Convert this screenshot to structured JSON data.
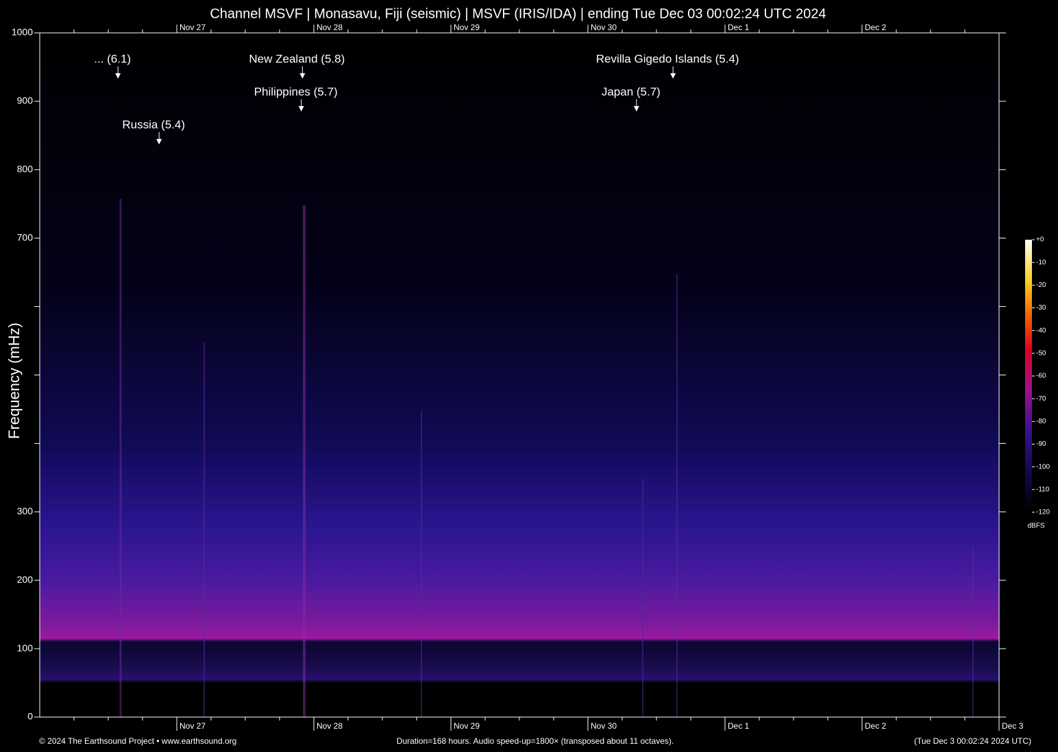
{
  "chart_data": {
    "type": "spectrogram",
    "title": "Channel MSVF | Monasavu, Fiji (seismic) | MSVF (IRIS/IDA) | ending Tue Dec 03 00:02:24 UTC 2024",
    "y_label": "Frequency (mHz)",
    "xlim": [
      0,
      168
    ],
    "xticks": [
      {
        "value": 24,
        "label": "Nov 27"
      },
      {
        "value": 48,
        "label": "Nov 28"
      },
      {
        "value": 72,
        "label": "Nov 29"
      },
      {
        "value": 96,
        "label": "Nov 30"
      },
      {
        "value": 120,
        "label": "Dec  1"
      },
      {
        "value": 144,
        "label": "Dec  2"
      },
      {
        "value": 168,
        "label": "Dec  3"
      }
    ],
    "minor_xticks": [
      6,
      12,
      18,
      30,
      36,
      42,
      54,
      60,
      66,
      78,
      84,
      90,
      102,
      108,
      114,
      126,
      132,
      138,
      150,
      156,
      162
    ],
    "ylim": [
      0,
      1000
    ],
    "yticks": [
      0,
      100,
      200,
      300,
      700,
      800,
      900,
      1000
    ],
    "minor_yticks": [
      400,
      500,
      600
    ],
    "annotations": [
      {
        "text": "... (6.1)",
        "x": 13.7,
        "y": 935
      },
      {
        "text": "Russia (5.4)",
        "x": 20.9,
        "y": 839
      },
      {
        "text": "New Zealand (5.8)",
        "x": 46.0,
        "y": 935
      },
      {
        "text": "Philippines (5.7)",
        "x": 45.8,
        "y": 887
      },
      {
        "text": "Revilla Gigedo Islands (5.4)",
        "x": 110.9,
        "y": 935
      },
      {
        "text": "Japan (5.7)",
        "x": 104.5,
        "y": 887
      }
    ],
    "colorbar": {
      "label": "dBFS",
      "lim": [
        -120,
        0
      ],
      "ticks": [
        {
          "value": 0,
          "label": "+0"
        },
        -10,
        -20,
        -30,
        -40,
        -50,
        -60,
        -70,
        -80,
        -90,
        -100,
        -110,
        -120
      ]
    },
    "footer_left": "© 2024 The Earthsound Project • www.earthsound.org",
    "footer_center": "Duration=168 hours. Audio speed-up=1800× (transposed about 11 octaves).",
    "footer_right": "(Tue Dec  3 00:02:24 2024 UTC)"
  }
}
